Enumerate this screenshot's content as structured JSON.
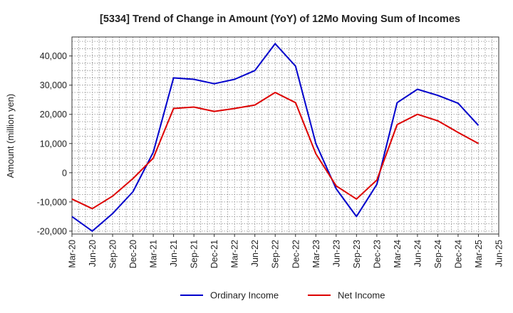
{
  "chart_data": {
    "type": "line",
    "title": "[5334]  Trend of Change in Amount (YoY) of 12Mo Moving Sum of Incomes",
    "xlabel": "",
    "ylabel": "Amount (million yen)",
    "ylim": [
      -21000,
      46500
    ],
    "yticks": [
      -20000,
      -10000,
      0,
      10000,
      20000,
      30000,
      40000
    ],
    "ytick_labels": [
      "-20,000",
      "-10,000",
      "0",
      "10,000",
      "20,000",
      "30,000",
      "40,000"
    ],
    "x_tick_labels": [
      "Mar-20",
      "Jun-20",
      "Sep-20",
      "Dec-20",
      "Mar-21",
      "Jun-21",
      "Sep-21",
      "Dec-21",
      "Mar-22",
      "Jun-22",
      "Sep-22",
      "Dec-22",
      "Mar-23",
      "Jun-23",
      "Sep-23",
      "Dec-23",
      "Mar-24",
      "Jun-24",
      "Sep-24",
      "Dec-24",
      "Mar-25",
      "Jun-25"
    ],
    "grid": true,
    "legend_position": "bottom",
    "series": [
      {
        "name": "Ordinary Income",
        "color": "#0000cc",
        "values": [
          -15000,
          -20000,
          -14000,
          -6500,
          7000,
          32500,
          32000,
          30500,
          32000,
          35000,
          44200,
          36500,
          10000,
          -5500,
          -15000,
          -4000,
          24000,
          28600,
          26500,
          23800,
          16200,
          null
        ]
      },
      {
        "name": "Net Income",
        "color": "#dd0000",
        "values": [
          -9000,
          -12300,
          -8000,
          -2000,
          5000,
          22000,
          22500,
          21000,
          22000,
          23200,
          27500,
          24000,
          6500,
          -4500,
          -9000,
          -2500,
          16500,
          20000,
          17800,
          13800,
          10000,
          null
        ]
      }
    ]
  }
}
